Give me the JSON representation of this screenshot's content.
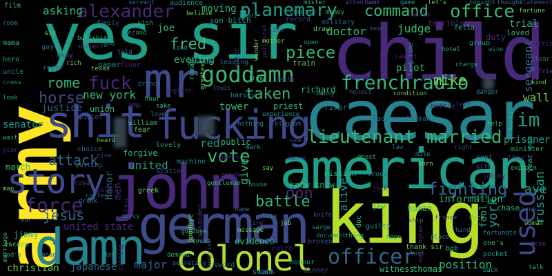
{
  "palette": {
    "background": "#000000",
    "yellow": "#fde725",
    "lime": "#b5de2b",
    "green": "#6ece58",
    "teal_green": "#35b779",
    "teal": "#1f9e89",
    "cyan": "#26828e",
    "blue": "#31688e",
    "indigo": "#3e4989",
    "purple": "#482878",
    "dark_purple": "#440154"
  },
  "words": [
    {
      "text": "army",
      "color": "yellow"
    },
    {
      "text": "yes sir",
      "color": "teal"
    },
    {
      "text": "child",
      "color": "purple"
    },
    {
      "text": "mr",
      "color": "indigo"
    },
    {
      "text": "caesar",
      "color": "cyan"
    },
    {
      "text": "american",
      "color": "teal"
    },
    {
      "text": "king",
      "color": "lime"
    },
    {
      "text": "john",
      "color": "purple"
    },
    {
      "text": "german",
      "color": "indigo"
    },
    {
      "text": "damn",
      "color": "cyan"
    },
    {
      "text": "colonel",
      "color": "lime"
    },
    {
      "text": "shit",
      "color": "indigo"
    },
    {
      "text": "fucking",
      "color": "indigo"
    },
    {
      "text": "story",
      "color": "indigo"
    },
    {
      "text": "alexander",
      "color": "purple"
    },
    {
      "text": "planemary",
      "color": "teal"
    },
    {
      "text": "command",
      "color": "teal_green"
    },
    {
      "text": "office",
      "color": "teal_green"
    },
    {
      "text": "goddamn",
      "color": "teal_green"
    },
    {
      "text": "frenchradio",
      "color": "teal_green"
    },
    {
      "text": "lieutenant",
      "color": "teal_green"
    },
    {
      "text": "married",
      "color": "teal_green"
    },
    {
      "text": "officer",
      "color": "blue"
    },
    {
      "text": "used",
      "color": "indigo"
    },
    {
      "text": "vote",
      "color": "teal_green"
    },
    {
      "text": "force",
      "color": "purple"
    },
    {
      "text": "fighting",
      "color": "blue"
    },
    {
      "text": "rome",
      "color": "teal_green"
    },
    {
      "text": "fuck",
      "color": "purple"
    },
    {
      "text": "horse",
      "color": "indigo"
    },
    {
      "text": "battle",
      "color": "teal_green"
    },
    {
      "text": "piece",
      "color": "teal_green"
    },
    {
      "text": "taken",
      "color": "teal_green"
    },
    {
      "text": "jesus",
      "color": "blue"
    },
    {
      "text": "attack",
      "color": "blue"
    },
    {
      "text": "fred",
      "color": "teal_green"
    },
    {
      "text": "jim",
      "color": "teal"
    },
    {
      "text": "mike",
      "color": "green"
    },
    {
      "text": "new york",
      "color": "teal_green"
    },
    {
      "text": "doctor",
      "color": "teal_green"
    },
    {
      "text": "judge",
      "color": "teal_green"
    },
    {
      "text": "asking",
      "color": "teal_green"
    },
    {
      "text": "joe",
      "color": "teal_green"
    },
    {
      "text": "moving",
      "color": "teal_green"
    },
    {
      "text": "pilot",
      "color": "teal_green"
    },
    {
      "text": "richard",
      "color": "teal_green"
    },
    {
      "text": "russian",
      "color": "teal"
    },
    {
      "text": "york",
      "color": "teal"
    },
    {
      "text": "given",
      "color": "teal_green"
    },
    {
      "text": "united",
      "color": "teal"
    },
    {
      "text": "position",
      "color": "teal_green"
    },
    {
      "text": "major",
      "color": "blue"
    },
    {
      "text": "christian",
      "color": "green"
    },
    {
      "text": "japanese",
      "color": "blue"
    },
    {
      "text": "justice",
      "color": "blue"
    },
    {
      "text": "evening",
      "color": "teal_green"
    },
    {
      "text": "tower",
      "color": "teal_green"
    },
    {
      "text": "sergeant",
      "color": "blue"
    },
    {
      "text": "wall",
      "color": "green"
    },
    {
      "text": "trial",
      "color": "teal_green"
    },
    {
      "text": "prisoner",
      "color": "teal"
    },
    {
      "text": "don",
      "color": "purple"
    },
    {
      "text": "aye",
      "color": "teal"
    },
    {
      "text": "senator",
      "color": "teal"
    },
    {
      "text": "human",
      "color": "teal_green"
    },
    {
      "text": "thomas",
      "color": "teal_green"
    },
    {
      "text": "evidence",
      "color": "teal_green"
    },
    {
      "text": "witness",
      "color": "teal_green"
    },
    {
      "text": "united state",
      "color": "purple"
    },
    {
      "text": "jimmy",
      "color": "teal_green"
    },
    {
      "text": "union",
      "color": "teal_green"
    },
    {
      "text": "forgive",
      "color": "teal_green"
    },
    {
      "text": "march",
      "color": "teal_green"
    },
    {
      "text": "mission",
      "color": "teal_green"
    },
    {
      "text": "chase",
      "color": "teal_green"
    },
    {
      "text": "information",
      "color": "teal_green"
    },
    {
      "text": "fool",
      "color": "teal"
    },
    {
      "text": "know know",
      "color": "teal_green"
    },
    {
      "text": "alive",
      "color": "teal"
    },
    {
      "text": "priest",
      "color": "teal_green"
    },
    {
      "text": "public",
      "color": "teal_green"
    },
    {
      "text": "red",
      "color": "teal"
    },
    {
      "text": "roman",
      "color": "teal_green"
    },
    {
      "text": "film",
      "color": "teal_green"
    },
    {
      "text": "audience",
      "color": "teal_green"
    },
    {
      "text": "paper",
      "color": "teal_green"
    },
    {
      "text": "roger",
      "color": "teal_green"
    },
    {
      "text": "station",
      "color": "teal_green"
    },
    {
      "text": "texas",
      "color": "teal_green"
    },
    {
      "text": "cairo",
      "color": "teal_green"
    },
    {
      "text": "doc",
      "color": "teal_green"
    },
    {
      "text": "honour",
      "color": "teal_green"
    },
    {
      "text": "secretary",
      "color": "teal_green"
    },
    {
      "text": "sword",
      "color": "teal_green"
    },
    {
      "text": "dinner",
      "color": "teal_green"
    },
    {
      "text": "greek",
      "color": "teal_green"
    },
    {
      "text": "paris",
      "color": "teal_green"
    },
    {
      "text": "bgb",
      "color": "teal_green"
    },
    {
      "text": "mark",
      "color": "teal_green"
    },
    {
      "text": "harvey",
      "color": "teal_green"
    },
    {
      "text": "louis",
      "color": "teal_green"
    },
    {
      "text": "center",
      "color": "teal_green"
    },
    {
      "text": "train",
      "color": "teal_green"
    },
    {
      "text": "madam",
      "color": "teal_green"
    },
    {
      "text": "william",
      "color": "teal_green"
    },
    {
      "text": "guilty",
      "color": "teal_green"
    },
    {
      "text": "troop",
      "color": "teal_green"
    },
    {
      "text": "tank",
      "color": "teal_green"
    },
    {
      "text": "broken",
      "color": "teal_green"
    },
    {
      "text": "message",
      "color": "teal_green"
    },
    {
      "text": "washington",
      "color": "teal_green"
    },
    {
      "text": "minister",
      "color": "teal_green"
    },
    {
      "text": "year ago",
      "color": "teal_green"
    },
    {
      "text": "long time",
      "color": "teal_green"
    },
    {
      "text": "kept",
      "color": "teal_green"
    },
    {
      "text": "gift",
      "color": "teal_green"
    },
    {
      "text": "goodbye",
      "color": "teal_green"
    },
    {
      "text": "commander",
      "color": "teal_green"
    },
    {
      "text": "demand",
      "color": "teal_green"
    },
    {
      "text": "doubt",
      "color": "teal_green"
    },
    {
      "text": "smoke",
      "color": "teal_green"
    },
    {
      "text": "servant",
      "color": "teal_green"
    },
    {
      "text": "statement",
      "color": "teal_green"
    },
    {
      "text": "fortune",
      "color": "teal_green"
    },
    {
      "text": "duty",
      "color": "teal_green"
    },
    {
      "text": "loved",
      "color": "teal_green"
    },
    {
      "text": "group",
      "color": "teal_green"
    },
    {
      "text": "wine",
      "color": "teal_green"
    },
    {
      "text": "military",
      "color": "teal_green"
    },
    {
      "text": "record",
      "color": "teal_green"
    },
    {
      "text": "draw",
      "color": "teal_green"
    },
    {
      "text": "terrible",
      "color": "teal_green"
    },
    {
      "text": "fella",
      "color": "teal_green"
    },
    {
      "text": "danny",
      "color": "teal_green"
    },
    {
      "text": "river",
      "color": "teal_green"
    },
    {
      "text": "lady gentleman",
      "color": "teal_green"
    },
    {
      "text": "honest",
      "color": "teal_green"
    },
    {
      "text": "condition",
      "color": "teal_green"
    },
    {
      "text": "bottle",
      "color": "teal_green"
    },
    {
      "text": "mama",
      "color": "teal_green"
    },
    {
      "text": "hero",
      "color": "teal_green"
    },
    {
      "text": "uncle",
      "color": "teal_green"
    },
    {
      "text": "choice",
      "color": "teal_green"
    },
    {
      "text": "royal",
      "color": "teal_green"
    },
    {
      "text": "escape",
      "color": "teal_green"
    },
    {
      "text": "sitting",
      "color": "teal_green"
    },
    {
      "text": "marriage",
      "color": "teal_green"
    },
    {
      "text": "god's",
      "color": "teal_green"
    },
    {
      "text": "drunk",
      "color": "teal_green"
    },
    {
      "text": "coffee",
      "color": "teal_green"
    },
    {
      "text": "knife",
      "color": "teal_green"
    },
    {
      "text": "thank sir",
      "color": "teal_green"
    },
    {
      "text": "they'd",
      "color": "teal_green"
    },
    {
      "text": "one's",
      "color": "teal_green"
    },
    {
      "text": "pocket",
      "color": "teal_green"
    },
    {
      "text": "fortunate",
      "color": "teal_green"
    },
    {
      "text": "gay",
      "color": "teal_green"
    },
    {
      "text": "okay",
      "color": "teal_green"
    },
    {
      "text": "sir",
      "color": "teal_green"
    },
    {
      "text": "floor",
      "color": "teal_green"
    },
    {
      "text": "goodbye",
      "color": "teal_green"
    },
    {
      "text": "sarge",
      "color": "teal_green"
    },
    {
      "text": "document",
      "color": "teal_green"
    },
    {
      "text": "lost",
      "color": "teal_green"
    },
    {
      "text": "mean",
      "color": "teal_green"
    },
    {
      "text": "wonder",
      "color": "teal_green"
    },
    {
      "text": "political",
      "color": "teal_green"
    },
    {
      "text": "bullshit",
      "color": "teal_green"
    },
    {
      "text": "son bitch",
      "color": "teal_green"
    },
    {
      "text": "pardon",
      "color": "teal_green"
    },
    {
      "text": "leaving",
      "color": "teal_green"
    },
    {
      "text": "opinion",
      "color": "teal_green"
    },
    {
      "text": "greatest",
      "color": "teal_green"
    },
    {
      "text": "caught",
      "color": "teal_green"
    },
    {
      "text": "hotel",
      "color": "teal_green"
    },
    {
      "text": "cross",
      "color": "teal_green"
    },
    {
      "text": "land",
      "color": "teal_green"
    },
    {
      "text": "prince",
      "color": "teal_green"
    },
    {
      "text": "dance",
      "color": "teal_green"
    },
    {
      "text": "fear",
      "color": "teal_green"
    },
    {
      "text": "amp",
      "color": "teal_green"
    },
    {
      "text": "sake",
      "color": "teal_green"
    },
    {
      "text": "lovely",
      "color": "teal_green"
    },
    {
      "text": "machine",
      "color": "teal_green"
    },
    {
      "text": "love",
      "color": "teal_green"
    },
    {
      "text": "nice",
      "color": "teal_green"
    },
    {
      "text": "heard",
      "color": "teal_green"
    },
    {
      "text": "held",
      "color": "teal_green"
    },
    {
      "text": "ghost",
      "color": "teal_green"
    },
    {
      "text": "jew",
      "color": "teal_green"
    },
    {
      "text": "one",
      "color": "teal_green"
    },
    {
      "text": "putting",
      "color": "teal_green"
    },
    {
      "text": "surprise",
      "color": "teal_green"
    },
    {
      "text": "born",
      "color": "teal_green"
    },
    {
      "text": "johnny",
      "color": "teal_green"
    },
    {
      "text": "explain",
      "color": "teal_green"
    },
    {
      "text": "kill",
      "color": "teal_green"
    },
    {
      "text": "mercy",
      "color": "teal_green"
    },
    {
      "text": "ship",
      "color": "teal_green"
    },
    {
      "text": "france",
      "color": "teal_green"
    },
    {
      "text": "dick",
      "color": "teal_green"
    },
    {
      "text": "left",
      "color": "teal_green"
    },
    {
      "text": "help",
      "color": "teal_green"
    },
    {
      "text": "charge",
      "color": "teal_green"
    },
    {
      "text": "danger",
      "color": "teal_green"
    },
    {
      "text": "clear",
      "color": "teal_green"
    },
    {
      "text": "friend",
      "color": "teal_green"
    },
    {
      "text": "kind",
      "color": "teal_green"
    },
    {
      "text": "citizen",
      "color": "teal_green"
    },
    {
      "text": "wish",
      "color": "teal_green"
    },
    {
      "text": "second",
      "color": "teal_green"
    },
    {
      "text": "god",
      "color": "teal_green"
    },
    {
      "text": "told",
      "color": "teal_green"
    },
    {
      "text": "life",
      "color": "teal_green"
    },
    {
      "text": "mother",
      "color": "teal_green"
    },
    {
      "text": "death",
      "color": "teal_green"
    },
    {
      "text": "free",
      "color": "teal_green"
    },
    {
      "text": "open",
      "color": "teal_green"
    },
    {
      "text": "men",
      "color": "teal_green"
    },
    {
      "text": "honor",
      "color": "teal_green"
    },
    {
      "text": "city",
      "color": "teal_green"
    },
    {
      "text": "mile",
      "color": "teal_green"
    },
    {
      "text": "law",
      "color": "teal_green"
    },
    {
      "text": "right",
      "color": "purple"
    },
    {
      "text": "let's",
      "color": "blue"
    },
    {
      "text": "tell",
      "color": "purple"
    },
    {
      "text": "mister",
      "color": "teal_green"
    },
    {
      "text": "game",
      "color": "teal_green"
    },
    {
      "text": "tonight",
      "color": "teal_green"
    },
    {
      "text": "thought",
      "color": "teal_green"
    },
    {
      "text": "attention",
      "color": "teal_green"
    },
    {
      "text": "believe",
      "color": "teal_green"
    },
    {
      "text": "world",
      "color": "teal_green"
    },
    {
      "text": "money",
      "color": "teal_green"
    },
    {
      "text": "country",
      "color": "teal_green"
    },
    {
      "text": "front",
      "color": "teal_green"
    },
    {
      "text": "family",
      "color": "teal_green"
    },
    {
      "text": "subject",
      "color": "teal_green"
    },
    {
      "text": "rich",
      "color": "teal_green"
    },
    {
      "text": "english",
      "color": "teal_green"
    },
    {
      "text": "hour",
      "color": "teal_green"
    },
    {
      "text": "experience",
      "color": "teal_green"
    },
    {
      "text": "nothing",
      "color": "teal_green"
    },
    {
      "text": "kingdom",
      "color": "teal_green"
    },
    {
      "text": "sea",
      "color": "teal_green"
    },
    {
      "text": "say",
      "color": "teal_green"
    },
    {
      "text": "speak",
      "color": "teal_green"
    },
    {
      "text": "gentleman",
      "color": "teal_green"
    },
    {
      "text": "house",
      "color": "teal_green"
    },
    {
      "text": "late",
      "color": "teal_green"
    },
    {
      "text": "name",
      "color": "teal_green"
    },
    {
      "text": "fire",
      "color": "teal_green"
    },
    {
      "text": "job",
      "color": "teal_green"
    },
    {
      "text": "jack",
      "color": "teal_green"
    },
    {
      "text": "hope",
      "color": "teal_green"
    },
    {
      "text": "thing",
      "color": "teal_green"
    },
    {
      "text": "place",
      "color": "teal_green"
    },
    {
      "text": "hand",
      "color": "teal_green"
    },
    {
      "text": "thank",
      "color": "teal_green"
    },
    {
      "text": "woman",
      "color": "teal_green"
    },
    {
      "text": "home",
      "color": "teal_green"
    },
    {
      "text": "talk",
      "color": "teal_green"
    },
    {
      "text": "back",
      "color": "teal_green"
    },
    {
      "text": "day",
      "color": "teal_green"
    },
    {
      "text": "mean",
      "color": "teal_green"
    },
    {
      "text": "war",
      "color": "teal_green"
    },
    {
      "text": "man",
      "color": "teal_green"
    },
    {
      "text": "year",
      "color": "teal_green"
    },
    {
      "text": "wait",
      "color": "teal_green"
    },
    {
      "text": "look",
      "color": "teal_green"
    },
    {
      "text": "room",
      "color": "teal_green"
    },
    {
      "text": "boy",
      "color": "teal_green"
    },
    {
      "text": "father",
      "color": "teal_green"
    },
    {
      "text": "want",
      "color": "teal_green"
    },
    {
      "text": "people",
      "color": "teal_green"
    },
    {
      "text": "going",
      "color": "teal_green"
    }
  ]
}
